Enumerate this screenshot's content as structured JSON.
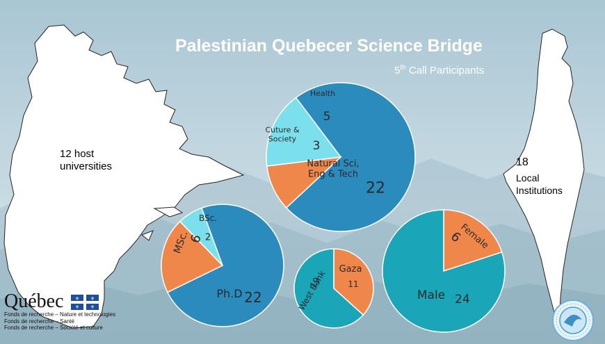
{
  "header": {
    "title": "Palestinian Quebecer Science Bridge",
    "subtitle_prefix": "5",
    "subtitle_sup": "th",
    "subtitle_suffix": " Call Participants"
  },
  "quebec_map": {
    "label_line1": "12 host",
    "label_line2": "universities"
  },
  "palestine_map": {
    "label_count": "18",
    "label_line1": "Local",
    "label_line2": "Institutions"
  },
  "colors": {
    "dark_blue": "#2b8bbd",
    "orange": "#f0874a",
    "light_cyan": "#7be0ec",
    "teal": "#1aa5b8"
  },
  "logo": {
    "word": "Québec",
    "line1": "Fonds de recherche – Nature et technologies",
    "line2": "Fonds de recherche – Santé",
    "line3": "Fonds de recherche – Société et culture"
  },
  "chart_data": [
    {
      "type": "pie",
      "title": "",
      "slices": [
        {
          "name_lines": [
            "Natural Sci,",
            "Eng & Tech"
          ],
          "value": 22,
          "color": "#2b8bbd"
        },
        {
          "name_lines": [
            "Cuture &",
            "Society"
          ],
          "value": 3,
          "color": "#f0874a"
        },
        {
          "name_lines": [
            "Health"
          ],
          "value": 5,
          "color": "#7be0ec"
        }
      ]
    },
    {
      "type": "pie",
      "title": "",
      "slices": [
        {
          "name_lines": [
            "Ph.D"
          ],
          "value": 22,
          "color": "#2b8bbd"
        },
        {
          "name_lines": [
            "MSc."
          ],
          "value": 6,
          "color": "#f0874a"
        },
        {
          "name_lines": [
            "BSc."
          ],
          "value": 2,
          "color": "#7be0ec"
        }
      ]
    },
    {
      "type": "pie",
      "title": "",
      "slices": [
        {
          "name_lines": [
            "Gaza"
          ],
          "value": 11,
          "color": "#f0874a"
        },
        {
          "name_lines": [
            "West Bank"
          ],
          "value": 19,
          "color": "#1aa5b8"
        }
      ]
    },
    {
      "type": "pie",
      "title": "",
      "slices": [
        {
          "name_lines": [
            "Female"
          ],
          "value": 6,
          "color": "#f0874a"
        },
        {
          "name_lines": [
            "Male"
          ],
          "value": 24,
          "color": "#1aa5b8"
        }
      ]
    }
  ]
}
